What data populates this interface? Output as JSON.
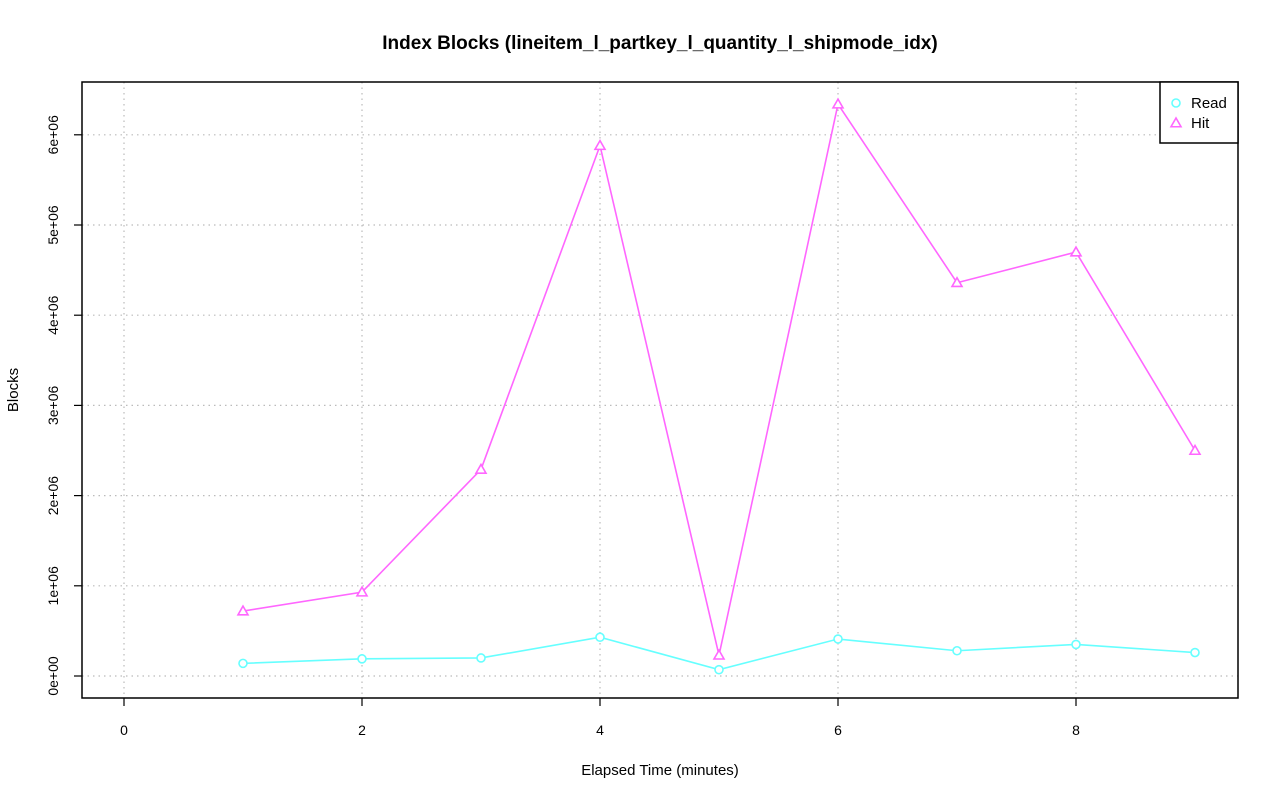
{
  "chart_data": {
    "type": "line",
    "title": "Index Blocks (lineitem_l_partkey_l_quantity_l_shipmode_idx)",
    "xlabel": "Elapsed Time (minutes)",
    "ylabel": "Blocks",
    "xlim": [
      0,
      9
    ],
    "ylim": [
      0,
      6300000
    ],
    "x_ticks": [
      "0",
      "2",
      "4",
      "6",
      "8"
    ],
    "y_ticks": [
      "0e+00",
      "1e+06",
      "2e+06",
      "3e+06",
      "4e+06",
      "5e+06",
      "6e+06"
    ],
    "grid": true,
    "legend_position": "top-right",
    "x": [
      1,
      2,
      3,
      4,
      5,
      6,
      7,
      8,
      9
    ],
    "series": [
      {
        "name": "Read",
        "color": "#66ffff",
        "marker": "circle",
        "values": [
          140000,
          190000,
          200000,
          430000,
          70000,
          410000,
          280000,
          350000,
          260000
        ]
      },
      {
        "name": "Hit",
        "color": "#ff66ff",
        "marker": "triangle",
        "values": [
          720000,
          930000,
          2290000,
          5880000,
          230000,
          6340000,
          4360000,
          4700000,
          2500000
        ]
      }
    ]
  }
}
